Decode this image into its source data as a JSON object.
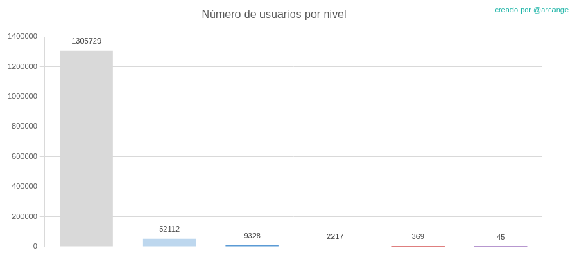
{
  "chart_data": {
    "type": "bar",
    "title": "Número de usuarios por nivel",
    "annotation": "creado por @arcange",
    "categories": [
      null,
      null,
      null,
      null,
      null,
      null
    ],
    "values": [
      1305729,
      52112,
      9328,
      2217,
      369,
      45
    ],
    "colors": [
      "#d9d9d9",
      "#bdd7ee",
      "#5b9bd5",
      "#a5a5a5",
      "#c00000",
      "#7030a0"
    ],
    "ylim": [
      0,
      1400000
    ],
    "yticks": [
      0,
      200000,
      400000,
      600000,
      800000,
      1000000,
      1200000,
      1400000
    ],
    "grid": true,
    "data_labels": true,
    "tick_labels": "y"
  }
}
